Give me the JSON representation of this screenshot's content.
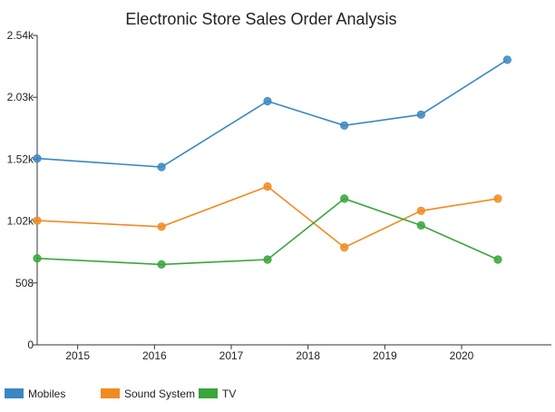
{
  "chart_data": {
    "type": "line",
    "title": "Electronic Store Sales Order Analysis",
    "xlabel": "",
    "ylabel": "",
    "x_ticks": [
      "2015",
      "2016",
      "2017",
      "2018",
      "2019",
      "2020"
    ],
    "y_ticks": [
      "0",
      "508",
      "1.02k",
      "1.52k",
      "2.03k",
      "2.54k"
    ],
    "ylim": [
      0,
      2540
    ],
    "grid": false,
    "legend_position": "bottom-left",
    "series": [
      {
        "name": "Mobiles",
        "color": "#3a87c3",
        "points": [
          {
            "x": "2014-01-01",
            "y": 1530
          },
          {
            "x": "2015-08-15",
            "y": 1460
          },
          {
            "x": "2017-01-01",
            "y": 2000
          },
          {
            "x": "2018-01-01",
            "y": 1800
          },
          {
            "x": "2019-01-01",
            "y": 1890
          },
          {
            "x": "2020-02-15",
            "y": 2340
          }
        ]
      },
      {
        "name": "Sound System",
        "color": "#f28a21",
        "points": [
          {
            "x": "2014-01-01",
            "y": 1020
          },
          {
            "x": "2015-08-15",
            "y": 970
          },
          {
            "x": "2017-01-01",
            "y": 1300
          },
          {
            "x": "2018-01-01",
            "y": 800
          },
          {
            "x": "2019-01-01",
            "y": 1100
          },
          {
            "x": "2020-01-01",
            "y": 1200
          }
        ]
      },
      {
        "name": "TV",
        "color": "#38a63a",
        "points": [
          {
            "x": "2014-01-01",
            "y": 710
          },
          {
            "x": "2015-08-15",
            "y": 660
          },
          {
            "x": "2017-01-01",
            "y": 700
          },
          {
            "x": "2018-01-01",
            "y": 1200
          },
          {
            "x": "2019-01-01",
            "y": 980
          },
          {
            "x": "2020-01-01",
            "y": 700
          }
        ]
      }
    ]
  }
}
